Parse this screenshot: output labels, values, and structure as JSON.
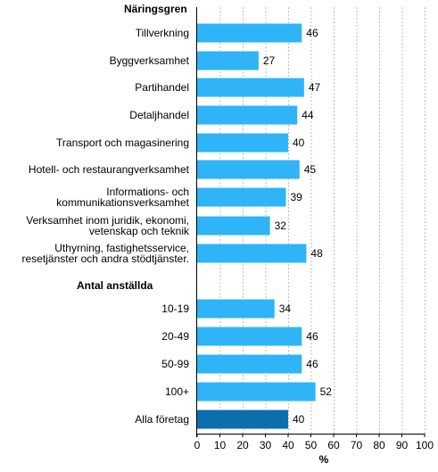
{
  "chart_data": {
    "type": "bar",
    "orientation": "horizontal",
    "xlabel": "%",
    "xlim": [
      0,
      100
    ],
    "xticks": [
      0,
      10,
      20,
      30,
      40,
      50,
      60,
      70,
      80,
      90,
      100
    ],
    "grid": true,
    "colors": {
      "bar": "#2eb4f7",
      "highlight": "#0b6fae",
      "grid": "#bdbdbd"
    },
    "groups": [
      {
        "title": "Näringsgren",
        "items": [
          {
            "label": [
              "Tillverkning"
            ],
            "value": 46
          },
          {
            "label": [
              "Byggverksamhet"
            ],
            "value": 27
          },
          {
            "label": [
              "Partihandel"
            ],
            "value": 47
          },
          {
            "label": [
              "Detaljhandel"
            ],
            "value": 44
          },
          {
            "label": [
              "Transport och magasinering"
            ],
            "value": 40
          },
          {
            "label": [
              "Hotell- och restaurangverksamhet"
            ],
            "value": 45
          },
          {
            "label": [
              "Informations- och",
              "kommunikationsverksamhet"
            ],
            "value": 39
          },
          {
            "label": [
              "Verksamhet inom juridik, ekonomi,",
              "vetenskap och teknik"
            ],
            "value": 32
          },
          {
            "label": [
              "Uthyrning, fastighetsservice,",
              "resetjänster och andra stödtjänster."
            ],
            "value": 48
          }
        ]
      },
      {
        "title": "Antal anställda",
        "items": [
          {
            "label": [
              "10-19"
            ],
            "value": 34
          },
          {
            "label": [
              "20-49"
            ],
            "value": 46
          },
          {
            "label": [
              "50-99"
            ],
            "value": 46
          },
          {
            "label": [
              "100+"
            ],
            "value": 52
          },
          {
            "label": [
              "Alla företag"
            ],
            "value": 40,
            "highlight": true
          }
        ]
      }
    ]
  }
}
